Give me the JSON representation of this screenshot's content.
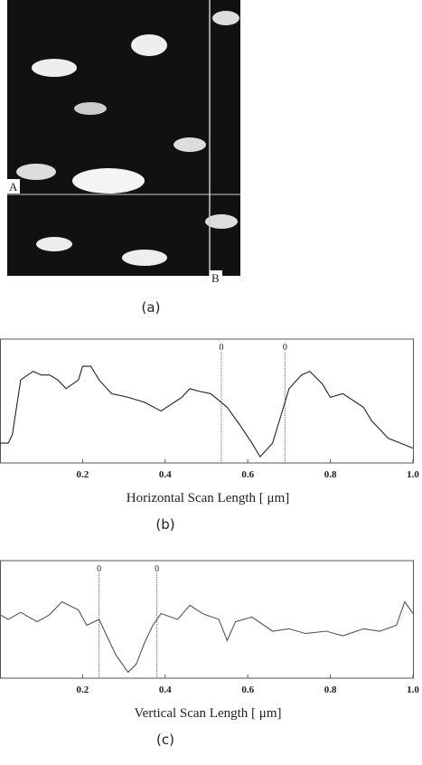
{
  "image_panel": {
    "label": "(a)",
    "point_a": "A",
    "point_b": "B"
  },
  "chart_data": [
    {
      "type": "line",
      "panel": "(b)",
      "xlabel": "Horizontal Scan Length [ μm]",
      "xlim": [
        0,
        1
      ],
      "ylim": [
        0,
        100
      ],
      "xticks": [
        0.2,
        0.4,
        0.6,
        0.8,
        {
          "value": 1,
          "label": "1.0"
        }
      ],
      "markers": [
        {
          "x": 0.536,
          "label": "0"
        },
        {
          "x": 0.69,
          "label": "0"
        }
      ],
      "series": [
        {
          "color": "#222",
          "x": [
            0,
            0.02,
            0.03,
            0.05,
            0.08,
            0.1,
            0.12,
            0.14,
            0.16,
            0.19,
            0.2,
            0.22,
            0.24,
            0.27,
            0.31,
            0.35,
            0.39,
            0.44,
            0.46,
            0.48,
            0.51,
            0.55,
            0.58,
            0.61,
            0.63,
            0.66,
            0.68,
            0.7,
            0.73,
            0.75,
            0.78,
            0.8,
            0.83,
            0.88,
            0.9,
            0.94,
            0.97,
            1
          ],
          "values": [
            16,
            16,
            23,
            67,
            74,
            71,
            71,
            67,
            60,
            67,
            78,
            78,
            67,
            56,
            53,
            49,
            42,
            53,
            60,
            58,
            56,
            45,
            31,
            16,
            5,
            16,
            38,
            60,
            71,
            74,
            64,
            53,
            56,
            45,
            34,
            20,
            16,
            12
          ]
        }
      ]
    },
    {
      "type": "line",
      "panel": "(c)",
      "xlabel": "Vertical Scan Length [ μm]",
      "xlim": [
        0,
        1
      ],
      "ylim": [
        0,
        100
      ],
      "xticks": [
        0.2,
        0.4,
        0.6,
        0.8,
        {
          "value": 1,
          "label": "1.0"
        }
      ],
      "markers": [
        {
          "x": 0.24,
          "label": "0"
        },
        {
          "x": 0.38,
          "label": "0"
        }
      ],
      "series": [
        {
          "color": "#555",
          "x": [
            0,
            0.02,
            0.05,
            0.09,
            0.12,
            0.15,
            0.19,
            0.21,
            0.24,
            0.26,
            0.28,
            0.31,
            0.33,
            0.35,
            0.37,
            0.39,
            0.43,
            0.46,
            0.49,
            0.53,
            0.55,
            0.57,
            0.61,
            0.66,
            0.7,
            0.74,
            0.79,
            0.83,
            0.88,
            0.92,
            0.96,
            0.98,
            1
          ],
          "values": [
            54,
            50,
            56,
            48,
            54,
            65,
            58,
            45,
            50,
            35,
            20,
            5,
            12,
            30,
            45,
            55,
            50,
            62,
            55,
            50,
            32,
            48,
            52,
            40,
            42,
            38,
            40,
            36,
            42,
            40,
            45,
            65,
            55
          ]
        }
      ]
    }
  ]
}
